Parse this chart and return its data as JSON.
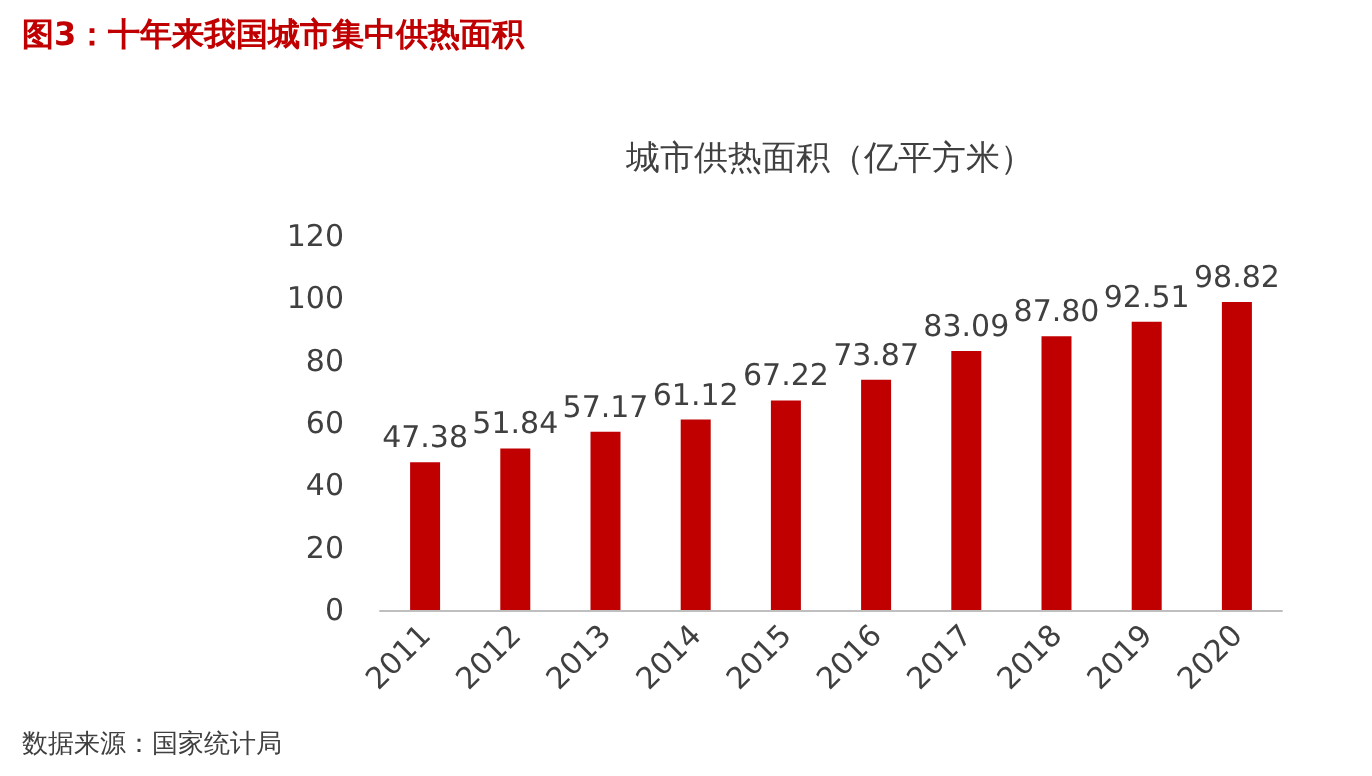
{
  "chart_data": {
    "type": "bar",
    "title": "图3：十年来我国城市集中供热面积",
    "subtitle": "城市供热面积（亿平方米）",
    "categories": [
      "2011",
      "2012",
      "2013",
      "2014",
      "2015",
      "2016",
      "2017",
      "2018",
      "2019",
      "2020"
    ],
    "values": [
      47.38,
      51.84,
      57.17,
      61.12,
      67.22,
      73.87,
      83.09,
      87.8,
      92.51,
      98.82
    ],
    "value_labels": [
      "47.38",
      "51.84",
      "57.17",
      "61.12",
      "67.22",
      "73.87",
      "83.09",
      "87.80",
      "92.51",
      "98.82"
    ],
    "color": "#c00000",
    "ylim": [
      0,
      120
    ],
    "yticks": [
      0,
      20,
      40,
      60,
      80,
      100,
      120
    ],
    "grid": false,
    "annotations": [
      "数据来源：国家统计局"
    ]
  }
}
